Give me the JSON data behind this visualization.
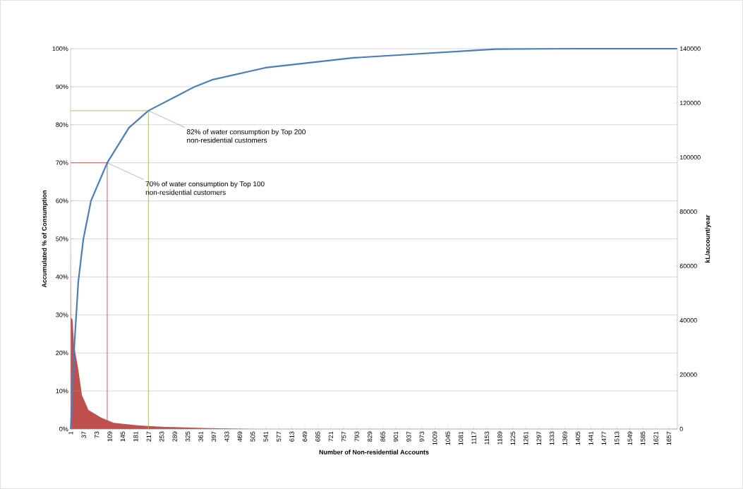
{
  "chart_data": {
    "type": "line",
    "xlabel": "Number of Non-residential Accounts",
    "ylabel": "Accumulated % of Consumption",
    "y2label": "kL/account/year",
    "xlim": [
      0.5,
      1680.5
    ],
    "xticks": [
      1,
      37,
      73,
      109,
      145,
      181,
      217,
      253,
      289,
      325,
      361,
      397,
      433,
      469,
      505,
      541,
      577,
      613,
      649,
      685,
      721,
      757,
      793,
      829,
      865,
      901,
      937,
      973,
      1009,
      1045,
      1081,
      1117,
      1153,
      1189,
      1225,
      1261,
      1297,
      1333,
      1369,
      1405,
      1441,
      1477,
      1513,
      1549,
      1585,
      1621,
      1657
    ],
    "ylim": [
      0,
      100
    ],
    "yticks": [
      {
        "value": 0,
        "label": "0%"
      },
      {
        "value": 10,
        "label": "10%"
      },
      {
        "value": 20,
        "label": "20%"
      },
      {
        "value": 30,
        "label": "30%"
      },
      {
        "value": 40,
        "label": "40%"
      },
      {
        "value": 50,
        "label": "50%"
      },
      {
        "value": 60,
        "label": "60%"
      },
      {
        "value": 70,
        "label": "70%"
      },
      {
        "value": 80,
        "label": "80%"
      },
      {
        "value": 90,
        "label": "90%"
      },
      {
        "value": 100,
        "label": "100%"
      }
    ],
    "y2lim": [
      0,
      140000
    ],
    "y2ticks": [
      0,
      20000,
      40000,
      60000,
      80000,
      100000,
      120000,
      140000
    ],
    "grid": "y",
    "series": [
      {
        "type": "area",
        "axis": "y2",
        "color": "#c0504d",
        "x": [
          1,
          2,
          6,
          10,
          22,
          32,
          50,
          85,
          120,
          190,
          260,
          365,
          505,
          901,
          1560
        ],
        "values": [
          72000,
          41000,
          40300,
          31000,
          21800,
          12500,
          7000,
          4200,
          2300,
          1300,
          800,
          400,
          0,
          0,
          0
        ]
      },
      {
        "color": "#4a7ebb",
        "x": [
          1,
          4,
          11,
          22,
          36,
          57,
          102,
          162,
          216,
          344,
          392,
          540,
          784,
          1176,
          1400,
          1680
        ],
        "values": [
          0,
          5.6,
          22,
          38.8,
          50,
          60,
          70,
          79.2,
          83.7,
          90,
          91.8,
          95,
          97.6,
          99.9,
          100,
          100
        ]
      },
      {
        "color": "#c0504d",
        "x": [
          1,
          102,
          102
        ],
        "values": [
          70,
          70,
          0
        ]
      },
      {
        "color": "#9bbb59",
        "x": [
          1,
          216,
          216
        ],
        "values": [
          83.7,
          83.7,
          0
        ]
      }
    ],
    "annotations": [
      {
        "text": "82% of water consumption by Top 200 non-residential customers",
        "x": 216,
        "y": 83.7
      },
      {
        "text": "70% of water consumption by Top 100 non-residential customers",
        "x": 102,
        "y": 70
      }
    ]
  }
}
